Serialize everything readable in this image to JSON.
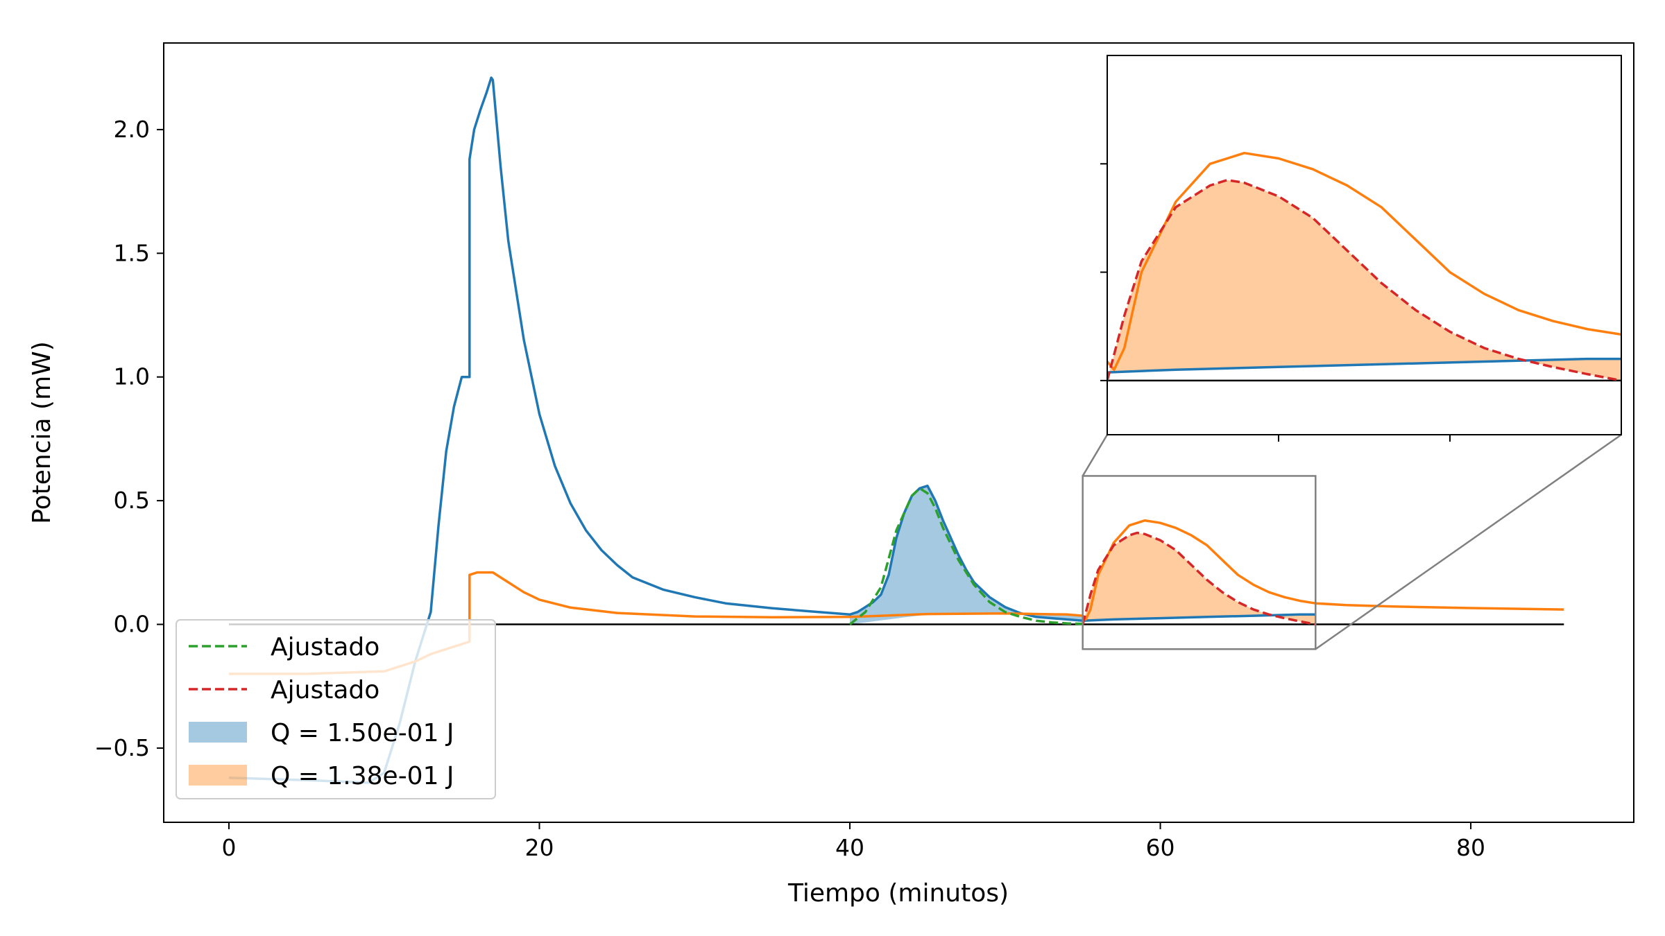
{
  "chart_data": {
    "type": "line",
    "xlabel": "Tiempo (minutos)",
    "ylabel": "Potencia (mW)",
    "xlim": [
      -4.2,
      90.5
    ],
    "ylim": [
      -0.8,
      2.35
    ],
    "xticks": [
      0,
      20,
      40,
      60,
      80
    ],
    "xtick_labels": [
      "0",
      "20",
      "40",
      "60",
      "80"
    ],
    "yticks": [
      -0.5,
      0.0,
      0.5,
      1.0,
      1.5,
      2.0
    ],
    "ytick_labels": [
      "−0.5",
      "0.0",
      "0.5",
      "1.0",
      "1.5",
      "2.0"
    ],
    "grid": false,
    "legend_position": "lower-left",
    "colors": {
      "blue": "#1f77b4",
      "orange": "#ff7f0e",
      "green": "#2ca02c",
      "red": "#d62728",
      "zero_line": "#000000",
      "inset_frame": "#808080"
    },
    "legend": [
      {
        "label": "Ajustado",
        "kind": "dashed-line",
        "color": "#2ca02c"
      },
      {
        "label": "Ajustado",
        "kind": "dashed-line",
        "color": "#d62728"
      },
      {
        "label": "Q = 1.50e-01 J",
        "kind": "patch",
        "color": "#1f77b4"
      },
      {
        "label": "Q = 1.38e-01 J",
        "kind": "patch",
        "color": "#ff7f0e"
      }
    ],
    "zero_line": {
      "x": [
        0,
        86
      ],
      "y": 0
    },
    "series": [
      {
        "color": "#1f77b4",
        "style": "solid",
        "x": [
          0,
          5,
          9,
          10,
          11,
          12,
          12.5,
          13.0,
          13.5,
          14.0,
          14.5,
          15.0,
          15.5,
          15.5,
          15.8,
          16.2,
          16.6,
          16.9,
          17.0,
          17.5,
          18,
          19,
          20,
          21,
          22,
          23,
          24,
          25,
          26,
          28,
          30,
          32,
          35,
          38,
          40,
          40.5,
          41,
          41.5,
          42,
          42.5,
          43,
          43.5,
          44,
          44.5,
          45,
          45.5,
          46,
          46.5,
          47,
          47.5,
          48,
          49,
          50,
          51,
          52,
          53,
          54,
          55,
          57,
          60,
          63,
          66,
          69,
          70
        ],
        "y": [
          -0.62,
          -0.63,
          -0.64,
          -0.6,
          -0.4,
          -0.15,
          -0.05,
          0.05,
          0.4,
          0.7,
          0.88,
          1.0,
          1.0,
          1.88,
          2.0,
          2.08,
          2.15,
          2.21,
          2.2,
          1.85,
          1.55,
          1.15,
          0.85,
          0.64,
          0.49,
          0.38,
          0.3,
          0.24,
          0.19,
          0.14,
          0.11,
          0.085,
          0.065,
          0.05,
          0.04,
          0.05,
          0.07,
          0.09,
          0.12,
          0.2,
          0.35,
          0.45,
          0.52,
          0.55,
          0.56,
          0.5,
          0.42,
          0.35,
          0.28,
          0.22,
          0.17,
          0.11,
          0.07,
          0.045,
          0.03,
          0.025,
          0.02,
          0.015,
          0.02,
          0.025,
          0.03,
          0.035,
          0.04,
          0.04
        ]
      },
      {
        "color": "#ff7f0e",
        "style": "solid",
        "x": [
          0,
          5,
          10,
          12,
          13,
          14,
          15,
          15.5,
          15.5,
          16,
          17,
          18,
          19,
          20,
          22,
          25,
          30,
          35,
          40,
          45,
          50,
          54,
          55,
          55.2,
          55.5,
          56,
          57,
          58,
          59,
          60,
          61,
          62,
          63,
          64,
          65,
          66,
          67,
          68,
          69,
          70,
          72,
          75,
          80,
          86
        ],
        "y": [
          -0.2,
          -0.2,
          -0.19,
          -0.15,
          -0.12,
          -0.1,
          -0.08,
          -0.07,
          0.2,
          0.21,
          0.21,
          0.17,
          0.13,
          0.1,
          0.068,
          0.046,
          0.032,
          0.029,
          0.03,
          0.042,
          0.044,
          0.04,
          0.035,
          0.02,
          0.06,
          0.2,
          0.33,
          0.4,
          0.42,
          0.41,
          0.39,
          0.36,
          0.32,
          0.26,
          0.2,
          0.16,
          0.13,
          0.11,
          0.095,
          0.085,
          0.078,
          0.072,
          0.066,
          0.06
        ]
      },
      {
        "color": "#2ca02c",
        "style": "dashed",
        "x": [
          40,
          41,
          42,
          43,
          44,
          44.5,
          45,
          45.5,
          46,
          47,
          48,
          49,
          50,
          51,
          52,
          53,
          54,
          55
        ],
        "y": [
          0.0,
          0.05,
          0.15,
          0.38,
          0.52,
          0.55,
          0.53,
          0.47,
          0.39,
          0.26,
          0.16,
          0.09,
          0.05,
          0.03,
          0.015,
          0.008,
          0.004,
          0.002
        ]
      },
      {
        "color": "#d62728",
        "style": "dashed",
        "x": [
          55,
          55.5,
          56,
          57,
          58,
          58.5,
          59,
          60,
          61,
          62,
          63,
          64,
          65,
          66,
          67,
          68,
          69,
          70
        ],
        "y": [
          0.0,
          0.12,
          0.22,
          0.32,
          0.36,
          0.37,
          0.365,
          0.34,
          0.3,
          0.24,
          0.18,
          0.13,
          0.09,
          0.06,
          0.04,
          0.025,
          0.012,
          0.0
        ]
      }
    ],
    "fills": [
      {
        "label": "Q = 1.50e-01 J",
        "color": "#1f77b4",
        "x": [
          40,
          40.5,
          41,
          41.5,
          42,
          42.5,
          43,
          43.5,
          44,
          44.5,
          45,
          45.5,
          46,
          46.5,
          47,
          47.5,
          48,
          49,
          50,
          51,
          52,
          53,
          54,
          55
        ],
        "y": [
          0.04,
          0.05,
          0.07,
          0.09,
          0.12,
          0.2,
          0.35,
          0.45,
          0.52,
          0.55,
          0.56,
          0.5,
          0.42,
          0.35,
          0.28,
          0.22,
          0.17,
          0.11,
          0.07,
          0.045,
          0.03,
          0.025,
          0.02,
          0.015
        ],
        "base_x": [
          40,
          45,
          50,
          55
        ],
        "base_y": [
          0.0,
          0.04,
          0.04,
          0.035
        ]
      },
      {
        "label": "Q = 1.38e-01 J",
        "color": "#ff7f0e",
        "x": [
          55,
          55.5,
          56,
          57,
          58,
          58.5,
          59,
          60,
          61,
          62,
          63,
          64,
          65,
          66,
          67,
          68,
          69,
          70
        ],
        "y": [
          0.0,
          0.12,
          0.22,
          0.32,
          0.36,
          0.37,
          0.365,
          0.34,
          0.3,
          0.24,
          0.18,
          0.13,
          0.09,
          0.06,
          0.04,
          0.025,
          0.012,
          0.0
        ],
        "base_x": [
          55,
          70
        ],
        "base_y": [
          0.015,
          0.04
        ]
      }
    ],
    "inset": {
      "xlim": [
        55,
        70
      ],
      "ylim": [
        -0.1,
        0.6
      ],
      "xticks": [
        60,
        65
      ],
      "yticks": [
        0.0,
        0.2,
        0.4
      ],
      "tick_labels_visible": false
    }
  }
}
